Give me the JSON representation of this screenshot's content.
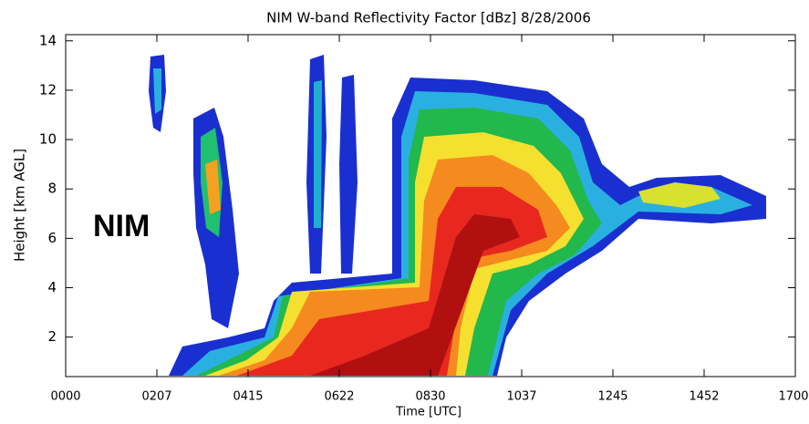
{
  "chart_data": {
    "type": "heatmap",
    "title": "NIM W-band Reflectivity Factor [dBz]   8/28/2006",
    "xlabel": "Time [UTC]",
    "ylabel": "Height [km AGL]",
    "annotation": "NIM",
    "xlim": [
      0,
      17
    ],
    "xticks": [
      {
        "value": 0,
        "label": "0000"
      },
      {
        "value": 2.125,
        "label": "0207"
      },
      {
        "value": 4.25,
        "label": "0415"
      },
      {
        "value": 6.375,
        "label": "0622"
      },
      {
        "value": 8.5,
        "label": "0830"
      },
      {
        "value": 10.625,
        "label": "1037"
      },
      {
        "value": 12.75,
        "label": "1245"
      },
      {
        "value": 14.875,
        "label": "1452"
      },
      {
        "value": 17,
        "label": "1700"
      }
    ],
    "ylim": [
      0.4,
      14.25
    ],
    "yticks": [
      2,
      4,
      6,
      8,
      10,
      12,
      14
    ]
  }
}
